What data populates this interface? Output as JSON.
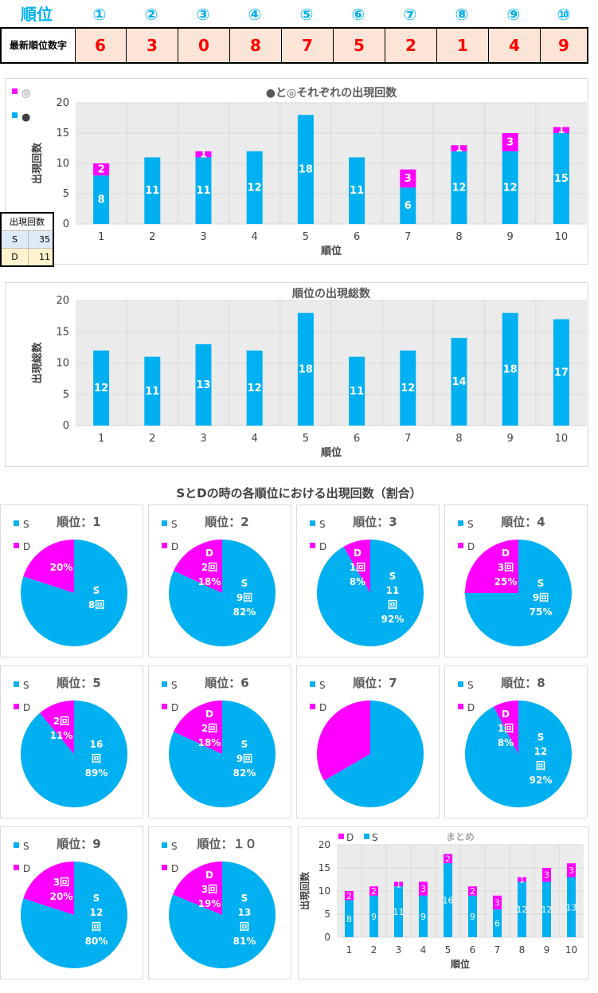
{
  "header": {
    "label": "順位",
    "positions": [
      "①",
      "②",
      "③",
      "④",
      "⑤",
      "⑥",
      "⑦",
      "⑧",
      "⑨",
      "⑩"
    ],
    "latest_label": "最新順位数字",
    "latest": [
      "6",
      "3",
      "0",
      "8",
      "7",
      "5",
      "2",
      "1",
      "4",
      "9"
    ]
  },
  "counts_table": {
    "header": "出現回数",
    "rows": [
      {
        "k": "S",
        "v": "35"
      },
      {
        "k": "D",
        "v": "11"
      }
    ]
  },
  "colors": {
    "cyan": "#00b0f0",
    "magenta": "#ff00ff",
    "plot_bg": "#ebebeb"
  },
  "chart_data": [
    {
      "type": "bar",
      "stacked": true,
      "title": "●と◎それぞれの出現回数",
      "xlabel": "順位",
      "ylabel": "出現回数",
      "ylim": [
        0,
        20
      ],
      "yticks": [
        0,
        5,
        10,
        15,
        20
      ],
      "categories": [
        "1",
        "2",
        "3",
        "4",
        "5",
        "6",
        "7",
        "8",
        "9",
        "10"
      ],
      "series": [
        {
          "name": "●",
          "color": "#00b0f0",
          "values": [
            8,
            11,
            11,
            12,
            18,
            11,
            6,
            12,
            12,
            15
          ]
        },
        {
          "name": "◎",
          "color": "#ff00ff",
          "values": [
            2,
            0,
            1,
            0,
            0,
            0,
            3,
            1,
            3,
            1
          ]
        }
      ],
      "legend": "top-left"
    },
    {
      "type": "bar",
      "title": "順位の出現総数",
      "xlabel": "順位",
      "ylabel": "出現総数",
      "ylim": [
        0,
        20
      ],
      "yticks": [
        0,
        5,
        10,
        15,
        20
      ],
      "categories": [
        "1",
        "2",
        "3",
        "4",
        "5",
        "6",
        "7",
        "8",
        "9",
        "10"
      ],
      "series": [
        {
          "color": "#00b0f0",
          "values": [
            12,
            11,
            13,
            12,
            18,
            11,
            12,
            14,
            18,
            17
          ]
        }
      ]
    },
    {
      "type": "pie",
      "section_title": "SとDの時の各順位における出現回数（割合）",
      "legend_items": [
        "S",
        "D"
      ],
      "pies": [
        {
          "title": "順位：1",
          "S": 8,
          "D": 2,
          "s_lines": [
            "S",
            "8回"
          ],
          "d_lines": [
            "20%"
          ]
        },
        {
          "title": "順位：2",
          "S": 9,
          "D": 2,
          "s_lines": [
            "S",
            "9回",
            "82%"
          ],
          "d_lines": [
            "D",
            "2回",
            "18%"
          ]
        },
        {
          "title": "順位：3",
          "S": 11,
          "D": 1,
          "s_lines": [
            "S",
            "11",
            "回",
            "92%"
          ],
          "d_lines": [
            "D",
            "1回",
            "8%"
          ]
        },
        {
          "title": "順位：4",
          "S": 9,
          "D": 3,
          "s_lines": [
            "S",
            "9回",
            "75%"
          ],
          "d_lines": [
            "D",
            "3回",
            "25%"
          ]
        },
        {
          "title": "順位：5",
          "S": 16,
          "D": 2,
          "s_lines": [
            "16",
            "回",
            "89%"
          ],
          "d_lines": [
            "2回",
            "11%"
          ]
        },
        {
          "title": "順位：6",
          "S": 9,
          "D": 2,
          "s_lines": [
            "S",
            "9回",
            "82%"
          ],
          "d_lines": [
            "D",
            "2回",
            "18%"
          ]
        },
        {
          "title": "順位：7",
          "S": 6,
          "D": 3,
          "s_lines": [],
          "d_lines": []
        },
        {
          "title": "順位：8",
          "S": 12,
          "D": 1,
          "s_lines": [
            "S",
            "12",
            "回",
            "92%"
          ],
          "d_lines": [
            "D",
            "1回",
            "8%"
          ]
        },
        {
          "title": "順位：9",
          "S": 12,
          "D": 3,
          "s_lines": [
            "S",
            "12",
            "回",
            "80%"
          ],
          "d_lines": [
            "3回",
            "20%"
          ]
        },
        {
          "title": "順位：１０",
          "S": 13,
          "D": 3,
          "s_lines": [
            "S",
            "13",
            "回",
            "81%"
          ],
          "d_lines": [
            "D",
            "3回",
            "19%"
          ]
        }
      ]
    },
    {
      "type": "bar",
      "stacked": true,
      "title": "まとめ",
      "xlabel": "順位",
      "ylabel": "出現回数",
      "ylim": [
        0,
        20
      ],
      "yticks": [
        0,
        5,
        10,
        15,
        20
      ],
      "categories": [
        "1",
        "2",
        "3",
        "4",
        "5",
        "6",
        "7",
        "8",
        "9",
        "10"
      ],
      "series": [
        {
          "name": "S",
          "color": "#00b0f0",
          "values": [
            8,
            9,
            11,
            9,
            16,
            9,
            6,
            12,
            12,
            13
          ]
        },
        {
          "name": "D",
          "color": "#ff00ff",
          "values": [
            2,
            2,
            1,
            3,
            2,
            2,
            3,
            1,
            3,
            3
          ]
        }
      ],
      "legend": "top-left"
    }
  ]
}
